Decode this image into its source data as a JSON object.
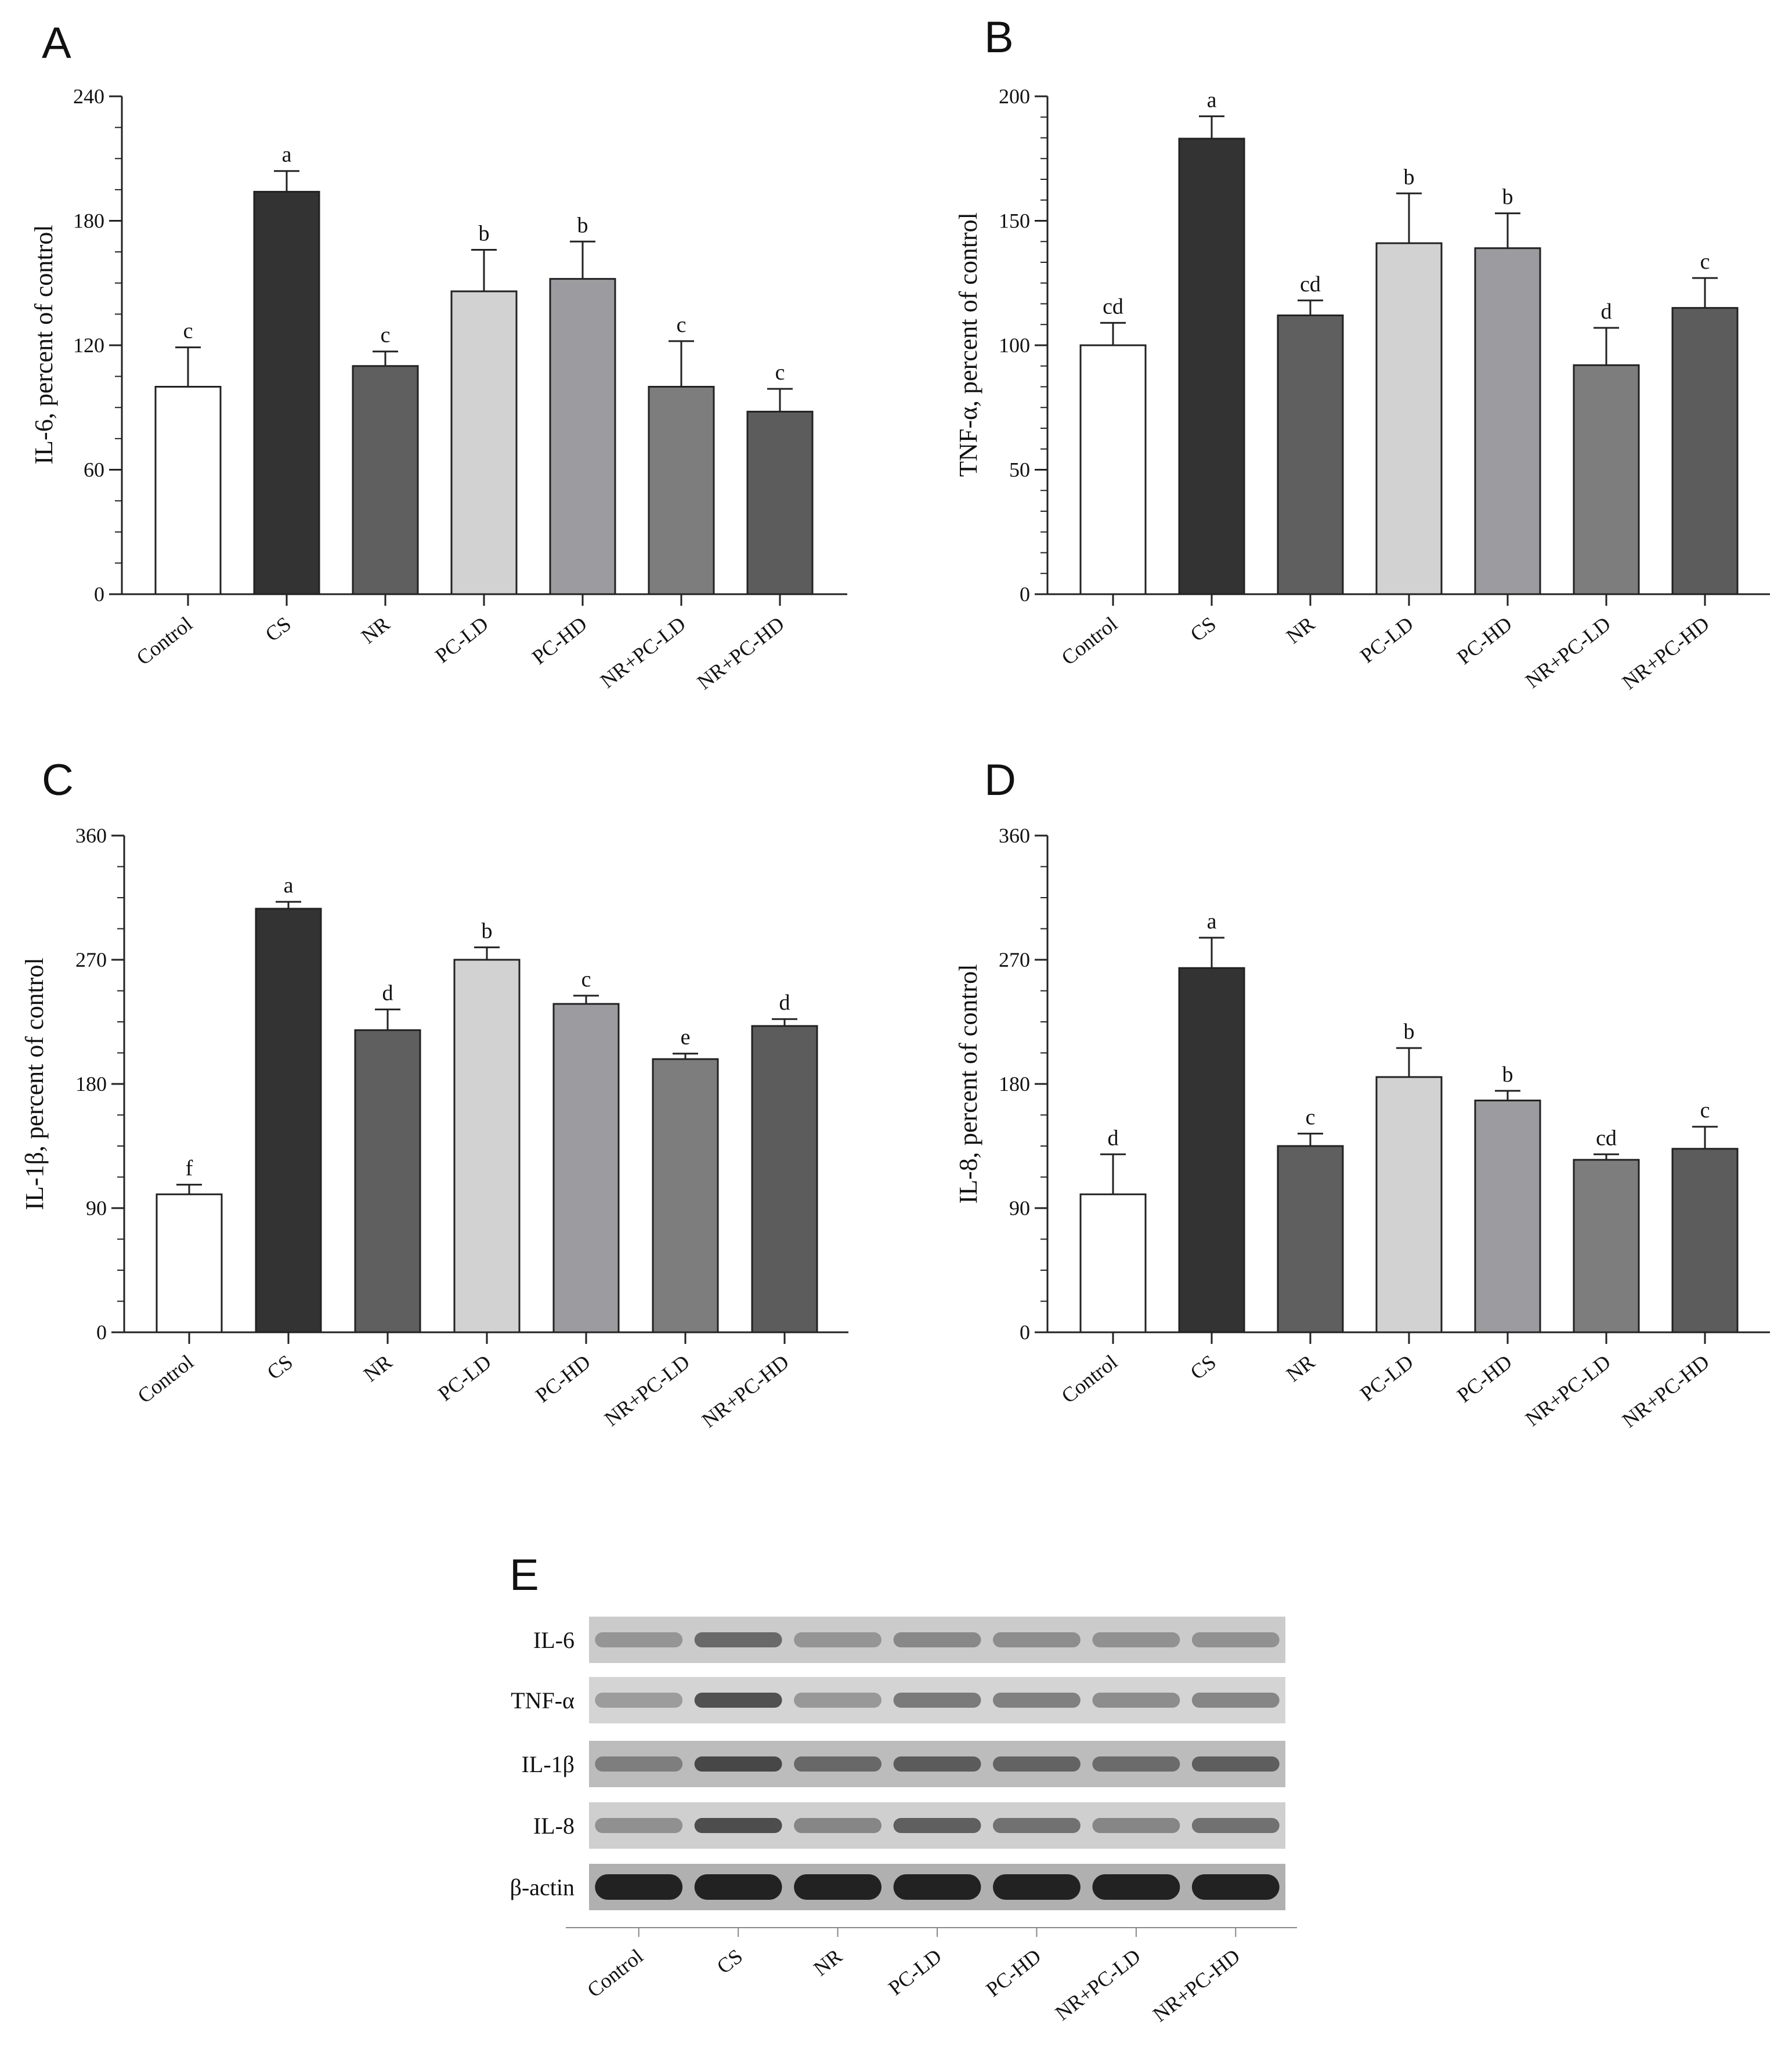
{
  "figure": {
    "categories": [
      "Control",
      "CS",
      "NR",
      "PC-LD",
      "PC-HD",
      "NR+PC-LD",
      "NR+PC-HD"
    ],
    "bar_colors": [
      "#ffffff",
      "#333333",
      "#5f5f5f",
      "#d2d2d2",
      "#9c9ca0",
      "#7d7d7d",
      "#5c5c5c"
    ]
  },
  "chart_data": [
    {
      "panel": "A",
      "type": "bar",
      "ylabel": "IL-6, percent of control",
      "ylim": [
        0,
        240
      ],
      "yticks": [
        0,
        60,
        120,
        180,
        240
      ],
      "categories": [
        "Control",
        "CS",
        "NR",
        "PC-LD",
        "PC-HD",
        "NR+PC-LD",
        "NR+PC-HD"
      ],
      "values": [
        100,
        194,
        110,
        146,
        152,
        100,
        88
      ],
      "errors": [
        19,
        10,
        7,
        20,
        18,
        22,
        11
      ],
      "significance": [
        "c",
        "a",
        "c",
        "b",
        "b",
        "c",
        "c"
      ]
    },
    {
      "panel": "B",
      "type": "bar",
      "ylabel": "TNF-α, percent of control",
      "ylim": [
        0,
        200
      ],
      "yticks": [
        0,
        50,
        100,
        150,
        200
      ],
      "categories": [
        "Control",
        "CS",
        "NR",
        "PC-LD",
        "PC-HD",
        "NR+PC-LD",
        "NR+PC-HD"
      ],
      "values": [
        100,
        183,
        112,
        141,
        139,
        92,
        115
      ],
      "errors": [
        9,
        9,
        6,
        20,
        14,
        15,
        12
      ],
      "significance": [
        "cd",
        "a",
        "cd",
        "b",
        "b",
        "d",
        "c"
      ]
    },
    {
      "panel": "C",
      "type": "bar",
      "ylabel": "IL-1β, percent of control",
      "ylim": [
        0,
        360
      ],
      "yticks": [
        0,
        90,
        180,
        270,
        360
      ],
      "categories": [
        "Control",
        "CS",
        "NR",
        "PC-LD",
        "PC-HD",
        "NR+PC-LD",
        "NR+PC-HD"
      ],
      "values": [
        100,
        307,
        219,
        270,
        238,
        198,
        222
      ],
      "errors": [
        7,
        5,
        15,
        9,
        6,
        4,
        5
      ],
      "significance": [
        "f",
        "a",
        "d",
        "b",
        "c",
        "e",
        "d"
      ]
    },
    {
      "panel": "D",
      "type": "bar",
      "ylabel": "IL-8, percent of control",
      "ylim": [
        0,
        360
      ],
      "yticks": [
        0,
        90,
        180,
        270,
        360
      ],
      "categories": [
        "Control",
        "CS",
        "NR",
        "PC-LD",
        "PC-HD",
        "NR+PC-LD",
        "NR+PC-HD"
      ],
      "values": [
        100,
        264,
        135,
        185,
        168,
        125,
        133
      ],
      "errors": [
        29,
        22,
        9,
        21,
        7,
        4,
        16
      ],
      "significance": [
        "d",
        "a",
        "c",
        "b",
        "b",
        "cd",
        "c"
      ]
    }
  ],
  "blot": {
    "panel": "E",
    "rows": [
      {
        "label": "IL-6",
        "intensity": [
          0.3,
          0.55,
          0.3,
          0.38,
          0.35,
          0.33,
          0.33
        ],
        "background": "#cbcbcb"
      },
      {
        "label": "TNF-α",
        "intensity": [
          0.3,
          0.7,
          0.32,
          0.48,
          0.45,
          0.38,
          0.42
        ],
        "background": "#d4d4d4"
      },
      {
        "label": "IL-1β",
        "intensity": [
          0.38,
          0.72,
          0.52,
          0.6,
          0.55,
          0.5,
          0.58
        ],
        "background": "#bcbcbc"
      },
      {
        "label": "IL-8",
        "intensity": [
          0.35,
          0.72,
          0.4,
          0.62,
          0.52,
          0.4,
          0.52
        ],
        "background": "#cfcfcf"
      },
      {
        "label": "β-actin",
        "intensity": [
          0.95,
          0.95,
          0.95,
          0.95,
          0.95,
          0.95,
          0.95
        ],
        "background": "#b0b0b0"
      }
    ]
  }
}
